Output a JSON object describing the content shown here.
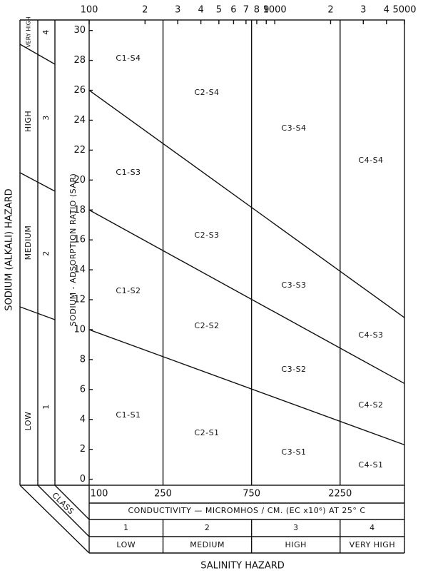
{
  "chart_data": {
    "type": "line",
    "x_label": "CONDUCTIVITY — MICROMHOS / CM.   (EC x10⁶) AT 25° C",
    "y_label": "SODIUM - ADSORPTION RATIO (SAR)",
    "xlog": true,
    "xlim": [
      100,
      5000
    ],
    "ylim": [
      -0.4,
      30.7
    ],
    "xticks": [
      100,
      {
        "value": 200,
        "label": "2"
      },
      {
        "value": 300,
        "label": "3"
      },
      {
        "value": 400,
        "label": "4"
      },
      {
        "value": 500,
        "label": "5"
      },
      {
        "value": 600,
        "label": "6"
      },
      {
        "value": 700,
        "label": "7"
      },
      {
        "value": 800,
        "label": "8"
      },
      {
        "value": 900,
        "label": "9"
      },
      1000,
      {
        "value": 2000,
        "label": "2"
      },
      {
        "value": 3000,
        "label": "3"
      },
      {
        "value": 4000,
        "label": "4"
      },
      5000
    ],
    "yticks": [
      0,
      2,
      4,
      6,
      8,
      10,
      12,
      14,
      16,
      18,
      20,
      22,
      24,
      26,
      28,
      30
    ],
    "class_bounds": [
      100,
      250,
      750,
      2250
    ],
    "x": [
      100,
      5000
    ],
    "series": [
      {
        "color": "#111111",
        "values": [
          10,
          2.3
        ]
      },
      {
        "color": "#111111",
        "values": [
          18,
          6.4
        ]
      },
      {
        "color": "#111111",
        "values": [
          26,
          10.8
        ]
      }
    ],
    "region_labels": [
      "C1-S4",
      "C2-S4",
      "C3-S4",
      "C4-S4",
      "C1-S3",
      "C2-S3",
      "C3-S3",
      "C4-S3",
      "C1-S2",
      "C2-S2",
      "C3-S2",
      "C4-S2",
      "C1-S1",
      "C2-S1",
      "C3-S1",
      "C4-S1"
    ],
    "salinity_title": "SALINITY HAZARD",
    "salinity_classes": [
      {
        "class": "1",
        "hazard": "LOW"
      },
      {
        "class": "2",
        "hazard": "MEDIUM"
      },
      {
        "class": "3",
        "hazard": "HIGH"
      },
      {
        "class": "4",
        "hazard": "VERY HIGH"
      }
    ],
    "class_label": "CLASS",
    "sodium_title": "SODIUM (ALKALI) HAZARD",
    "sodium_classes": [
      {
        "class": "1",
        "hazard": "LOW"
      },
      {
        "class": "2",
        "hazard": "MEDIUM"
      },
      {
        "class": "3",
        "hazard": "HIGH"
      },
      {
        "class": "4",
        "hazard": "VERY HIGH"
      }
    ]
  }
}
